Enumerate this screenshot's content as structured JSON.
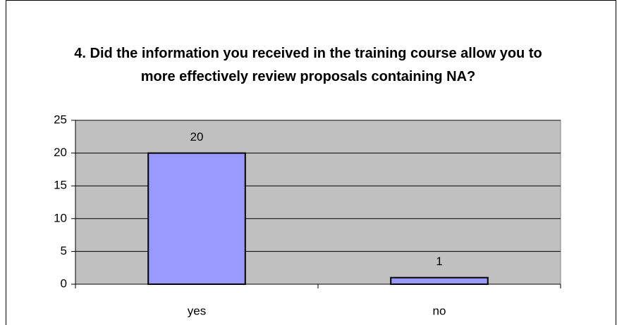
{
  "chart_data": {
    "type": "bar",
    "title": "4.  Did the information you received in the training course allow you to more effectively review proposals containing NA?",
    "categories": [
      "yes",
      "no"
    ],
    "values": [
      20,
      1
    ],
    "color": "#9999ff",
    "ylim": [
      0,
      25
    ],
    "yticks": [
      0,
      5,
      10,
      15,
      20,
      25
    ],
    "grid": true
  }
}
